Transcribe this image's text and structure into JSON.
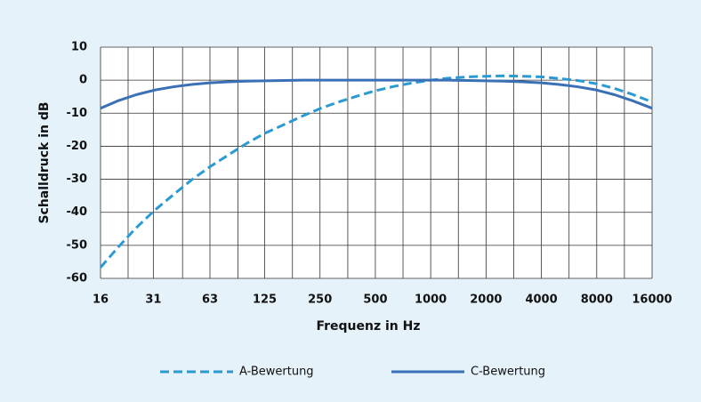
{
  "chart_data": {
    "type": "line",
    "xlabel": "Frequenz in Hz",
    "ylabel": "Schalldruck in dB",
    "x": [
      16,
      20,
      25,
      31.5,
      40,
      50,
      63,
      80,
      100,
      125,
      160,
      200,
      250,
      315,
      400,
      500,
      630,
      800,
      1000,
      1250,
      1600,
      2000,
      2500,
      3150,
      4000,
      5000,
      6300,
      8000,
      10000,
      12500,
      16000
    ],
    "series": [
      {
        "name": "A-Bewertung",
        "color": "#2b9ad3",
        "dashed": true,
        "values": [
          -56.7,
          -50.5,
          -44.7,
          -39.4,
          -34.6,
          -30.2,
          -26.2,
          -22.5,
          -19.1,
          -16.1,
          -13.4,
          -10.9,
          -8.6,
          -6.6,
          -4.8,
          -3.2,
          -1.9,
          -0.8,
          0,
          0.6,
          1.0,
          1.2,
          1.3,
          1.2,
          1.0,
          0.5,
          -0.1,
          -1.1,
          -2.5,
          -4.3,
          -6.6
        ]
      },
      {
        "name": "C-Bewertung",
        "color": "#3a70b6",
        "dashed": false,
        "values": [
          -8.5,
          -6.2,
          -4.4,
          -3.0,
          -2.0,
          -1.3,
          -0.8,
          -0.5,
          -0.3,
          -0.2,
          -0.1,
          0,
          0,
          0,
          0,
          0,
          0,
          0,
          0,
          0,
          -0.1,
          -0.2,
          -0.3,
          -0.5,
          -0.8,
          -1.3,
          -2.0,
          -3.0,
          -4.4,
          -6.2,
          -8.5
        ]
      }
    ],
    "xscale": "log",
    "xlim": [
      16,
      16000
    ],
    "xticks": [
      16,
      31,
      63,
      125,
      250,
      500,
      1000,
      2000,
      4000,
      8000,
      16000
    ],
    "x_minor_ticks": [
      22.6,
      44.7,
      89.4,
      177,
      354,
      707,
      1414,
      2828,
      5657,
      11314
    ],
    "ylim": [
      -60,
      10
    ],
    "yticks": [
      -60,
      -50,
      -40,
      -30,
      -20,
      -10,
      0,
      10
    ],
    "grid": true
  }
}
